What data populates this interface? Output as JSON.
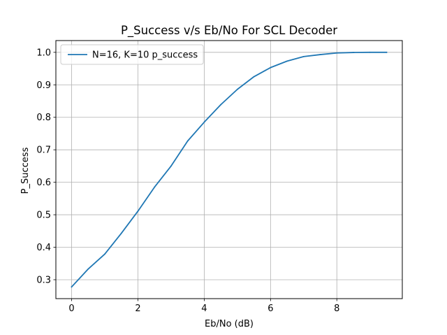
{
  "chart_data": {
    "type": "line",
    "title": "P_Success v/s Eb/No For SCL Decoder",
    "xlabel": "Eb/No (dB)",
    "ylabel": "P_Success",
    "xlim": [
      -0.475,
      9.975
    ],
    "ylim": [
      0.2418,
      1.0362
    ],
    "xticks": [
      0,
      2,
      4,
      6,
      8
    ],
    "yticks": [
      0.3,
      0.4,
      0.5,
      0.6,
      0.7,
      0.8,
      0.9,
      1.0
    ],
    "xtick_labels": [
      "0",
      "2",
      "4",
      "6",
      "8"
    ],
    "ytick_labels": [
      "0.3",
      "0.4",
      "0.5",
      "0.6",
      "0.7",
      "0.8",
      "0.9",
      "1.0"
    ],
    "grid": true,
    "legend_position": "upper-left",
    "series": [
      {
        "name": "N=16, K=10 p_success",
        "color": "#1f77b4",
        "x": [
          0,
          0.5,
          1,
          1.5,
          2,
          2.5,
          3,
          3.5,
          4,
          4.5,
          5,
          5.5,
          6,
          6.5,
          7,
          7.5,
          8,
          8.5,
          9,
          9.5
        ],
        "y": [
          0.278,
          0.333,
          0.379,
          0.443,
          0.511,
          0.585,
          0.65,
          0.727,
          0.785,
          0.839,
          0.886,
          0.925,
          0.953,
          0.973,
          0.987,
          0.993,
          0.998,
          0.9995,
          1.0,
          1.0
        ]
      }
    ]
  }
}
